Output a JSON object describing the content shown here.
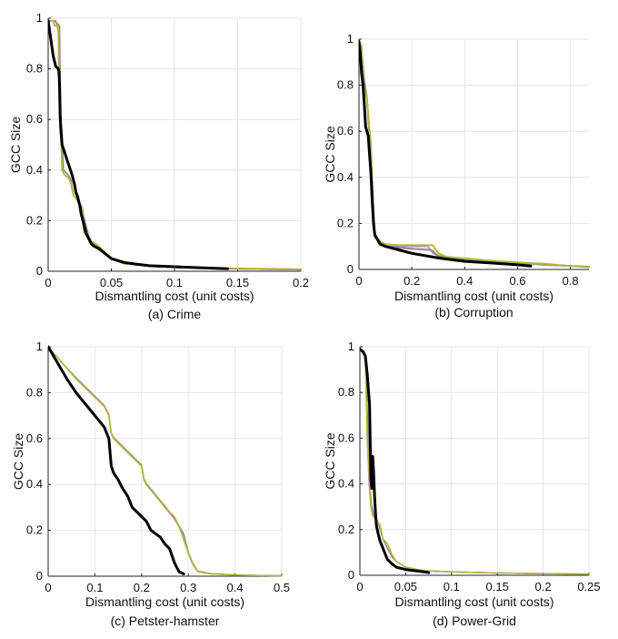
{
  "figure": {
    "ylabel_shared": "GCC Size"
  },
  "chart_data": [
    {
      "type": "line",
      "caption": "(a) Crime",
      "xlabel": "Dismantling cost (unit costs)",
      "ylabel": "GCC Size",
      "xlim": [
        0,
        0.2
      ],
      "ylim": [
        0,
        1
      ],
      "xticks": [
        0,
        0.05,
        0.1,
        0.15,
        0.2
      ],
      "xtick_labels": [
        "0",
        "0.05",
        "0.1",
        "0.15",
        "0.2"
      ],
      "yticks": [
        0,
        0.2,
        0.4,
        0.6,
        0.8,
        1
      ],
      "ytick_labels": [
        "0",
        "0.2",
        "0.4",
        "0.6",
        "0.8",
        "1"
      ],
      "grid": true,
      "series": [
        {
          "name": "magenta",
          "color": "#c97fbf",
          "width": 1.6,
          "x": [
            0,
            0.004,
            0.006,
            0.008,
            0.009,
            0.01,
            0.011,
            0.012,
            0.016,
            0.018,
            0.02,
            0.022,
            0.025,
            0.027,
            0.028,
            0.03,
            0.032,
            0.035,
            0.04,
            0.05,
            0.06,
            0.08,
            0.1,
            0.14,
            0.2
          ],
          "y": [
            0.99,
            0.99,
            0.99,
            0.95,
            0.6,
            0.57,
            0.55,
            0.4,
            0.38,
            0.36,
            0.3,
            0.29,
            0.27,
            0.25,
            0.21,
            0.18,
            0.14,
            0.11,
            0.09,
            0.05,
            0.03,
            0.02,
            0.015,
            0.01,
            0.006
          ]
        },
        {
          "name": "gray",
          "color": "#8a8a8a",
          "width": 1.6,
          "x": [
            0,
            0.005,
            0.007,
            0.009,
            0.01,
            0.011,
            0.012,
            0.016,
            0.018,
            0.02,
            0.022,
            0.025,
            0.027,
            0.028,
            0.03,
            0.032,
            0.035,
            0.04,
            0.05,
            0.06,
            0.08,
            0.1,
            0.14,
            0.2
          ],
          "y": [
            0.99,
            0.99,
            0.98,
            0.97,
            0.6,
            0.55,
            0.4,
            0.38,
            0.36,
            0.3,
            0.29,
            0.26,
            0.25,
            0.22,
            0.18,
            0.14,
            0.11,
            0.09,
            0.05,
            0.03,
            0.02,
            0.015,
            0.01,
            0.006
          ]
        },
        {
          "name": "olive",
          "color": "#b5b53a",
          "width": 1.8,
          "x": [
            0,
            0.004,
            0.005,
            0.008,
            0.009,
            0.01,
            0.011,
            0.012,
            0.013,
            0.016,
            0.018,
            0.02,
            0.022,
            0.024,
            0.025,
            0.026,
            0.027,
            0.028,
            0.029,
            0.03,
            0.032,
            0.034,
            0.037,
            0.04,
            0.05,
            0.06,
            0.08,
            0.1,
            0.14,
            0.19,
            0.2
          ],
          "y": [
            0.99,
            0.99,
            0.97,
            0.97,
            0.8,
            0.55,
            0.4,
            0.39,
            0.38,
            0.37,
            0.35,
            0.3,
            0.29,
            0.27,
            0.26,
            0.25,
            0.25,
            0.16,
            0.15,
            0.15,
            0.13,
            0.12,
            0.11,
            0.1,
            0.05,
            0.03,
            0.022,
            0.018,
            0.012,
            0.009,
            0.008
          ]
        },
        {
          "name": "black",
          "color": "#000000",
          "width": 3,
          "x": [
            0,
            0.002,
            0.004,
            0.006,
            0.008,
            0.0085,
            0.009,
            0.0095,
            0.01,
            0.011,
            0.013,
            0.015,
            0.017,
            0.019,
            0.021,
            0.022,
            0.023,
            0.024,
            0.025,
            0.026,
            0.028,
            0.03,
            0.032,
            0.034,
            0.036,
            0.04,
            0.045,
            0.05,
            0.06,
            0.07,
            0.08,
            0.1,
            0.12,
            0.142
          ],
          "y": [
            0.99,
            0.92,
            0.85,
            0.81,
            0.8,
            0.79,
            0.74,
            0.62,
            0.56,
            0.5,
            0.47,
            0.44,
            0.41,
            0.38,
            0.34,
            0.31,
            0.3,
            0.28,
            0.26,
            0.23,
            0.19,
            0.15,
            0.13,
            0.11,
            0.1,
            0.09,
            0.07,
            0.05,
            0.035,
            0.028,
            0.022,
            0.018,
            0.014,
            0.01
          ]
        }
      ]
    },
    {
      "type": "line",
      "caption": "(b) Corruption",
      "xlabel": "Dismantling cost (unit costs)",
      "ylabel": "GCC Size",
      "xlim": [
        0,
        0.87
      ],
      "ylim": [
        0,
        1
      ],
      "xticks": [
        0,
        0.2,
        0.4,
        0.6,
        0.8
      ],
      "xtick_labels": [
        "0",
        "0.2",
        "0.4",
        "0.6",
        "0.8"
      ],
      "yticks": [
        0,
        0.2,
        0.4,
        0.6,
        0.8,
        1
      ],
      "ytick_labels": [
        "0",
        "0.2",
        "0.4",
        "0.6",
        "0.8",
        "1"
      ],
      "grid": true,
      "series": [
        {
          "name": "magenta",
          "color": "#c97fbf",
          "width": 1.6,
          "x": [
            0,
            0.01,
            0.02,
            0.03,
            0.04,
            0.05,
            0.06,
            0.08,
            0.1,
            0.15,
            0.2,
            0.26,
            0.28,
            0.3,
            0.4,
            0.5,
            0.6,
            0.7,
            0.87
          ],
          "y": [
            0.99,
            0.95,
            0.82,
            0.75,
            0.6,
            0.4,
            0.15,
            0.12,
            0.11,
            0.1,
            0.1,
            0.1,
            0.07,
            0.06,
            0.045,
            0.035,
            0.03,
            0.02,
            0.012
          ]
        },
        {
          "name": "gray",
          "color": "#8a8a8a",
          "width": 2,
          "x": [
            0,
            0.01,
            0.02,
            0.03,
            0.04,
            0.05,
            0.06,
            0.08,
            0.1,
            0.15,
            0.2,
            0.27,
            0.28,
            0.3,
            0.4,
            0.5,
            0.6,
            0.7,
            0.87
          ],
          "y": [
            0.99,
            0.94,
            0.82,
            0.74,
            0.58,
            0.38,
            0.14,
            0.12,
            0.1,
            0.095,
            0.09,
            0.085,
            0.08,
            0.055,
            0.045,
            0.035,
            0.03,
            0.02,
            0.012
          ]
        },
        {
          "name": "olive",
          "color": "#b5b53a",
          "width": 2,
          "x": [
            0,
            0.01,
            0.015,
            0.02,
            0.03,
            0.04,
            0.045,
            0.05,
            0.06,
            0.08,
            0.1,
            0.15,
            0.2,
            0.25,
            0.28,
            0.3,
            0.33,
            0.4,
            0.5,
            0.6,
            0.7,
            0.8,
            0.87
          ],
          "y": [
            0.99,
            0.97,
            0.8,
            0.78,
            0.74,
            0.6,
            0.55,
            0.35,
            0.15,
            0.12,
            0.11,
            0.105,
            0.105,
            0.105,
            0.105,
            0.07,
            0.055,
            0.048,
            0.038,
            0.03,
            0.025,
            0.015,
            0.01
          ]
        },
        {
          "name": "black",
          "color": "#000000",
          "width": 3,
          "x": [
            0,
            0.005,
            0.01,
            0.015,
            0.02,
            0.025,
            0.03,
            0.035,
            0.04,
            0.045,
            0.05,
            0.055,
            0.06,
            0.07,
            0.08,
            0.1,
            0.15,
            0.2,
            0.25,
            0.3,
            0.4,
            0.5,
            0.6,
            0.65
          ],
          "y": [
            0.99,
            0.93,
            0.85,
            0.8,
            0.72,
            0.62,
            0.6,
            0.58,
            0.5,
            0.42,
            0.3,
            0.2,
            0.15,
            0.13,
            0.11,
            0.1,
            0.085,
            0.07,
            0.06,
            0.05,
            0.035,
            0.028,
            0.02,
            0.015
          ]
        }
      ]
    },
    {
      "type": "line",
      "caption": "(c) Petster-hamster",
      "xlabel": "Dismantling cost (unit costs)",
      "ylabel": "GCC Size",
      "xlim": [
        0,
        0.5
      ],
      "ylim": [
        0,
        1
      ],
      "xticks": [
        0,
        0.1,
        0.2,
        0.3,
        0.4,
        0.5
      ],
      "xtick_labels": [
        "0",
        "0.1",
        "0.2",
        "0.3",
        "0.4",
        "0.5"
      ],
      "yticks": [
        0,
        0.2,
        0.4,
        0.6,
        0.8,
        1
      ],
      "ytick_labels": [
        "0",
        "0.2",
        "0.4",
        "0.6",
        "0.8",
        "1"
      ],
      "grid": true,
      "series": [
        {
          "name": "magenta",
          "color": "#c97fbf",
          "width": 1.4,
          "x": [
            0,
            0.03,
            0.06,
            0.1,
            0.12,
            0.13,
            0.135,
            0.14,
            0.16,
            0.18,
            0.2,
            0.205,
            0.21,
            0.23,
            0.25,
            0.27,
            0.29,
            0.3,
            0.31,
            0.32,
            0.35,
            0.4,
            0.45,
            0.5
          ],
          "y": [
            1,
            0.93,
            0.86,
            0.78,
            0.74,
            0.7,
            0.62,
            0.6,
            0.56,
            0.52,
            0.48,
            0.42,
            0.4,
            0.35,
            0.3,
            0.25,
            0.18,
            0.1,
            0.05,
            0.02,
            0.01,
            0.005,
            0.003,
            0.002
          ]
        },
        {
          "name": "gray",
          "color": "#8a8a8a",
          "width": 1.4,
          "x": [
            0,
            0.03,
            0.06,
            0.1,
            0.12,
            0.13,
            0.135,
            0.14,
            0.16,
            0.18,
            0.2,
            0.205,
            0.21,
            0.23,
            0.25,
            0.27,
            0.29,
            0.3,
            0.31,
            0.32,
            0.35,
            0.4,
            0.45,
            0.5
          ],
          "y": [
            1,
            0.93,
            0.865,
            0.785,
            0.745,
            0.705,
            0.625,
            0.605,
            0.565,
            0.525,
            0.485,
            0.425,
            0.405,
            0.355,
            0.305,
            0.255,
            0.185,
            0.105,
            0.055,
            0.022,
            0.011,
            0.006,
            0.003,
            0.002
          ]
        },
        {
          "name": "olive",
          "color": "#b5b53a",
          "width": 1.6,
          "x": [
            0,
            0.03,
            0.06,
            0.1,
            0.12,
            0.13,
            0.135,
            0.14,
            0.16,
            0.18,
            0.2,
            0.205,
            0.21,
            0.23,
            0.25,
            0.27,
            0.28,
            0.29,
            0.3,
            0.31,
            0.32,
            0.35,
            0.4,
            0.45,
            0.5
          ],
          "y": [
            1,
            0.93,
            0.86,
            0.78,
            0.74,
            0.7,
            0.62,
            0.6,
            0.56,
            0.52,
            0.48,
            0.42,
            0.4,
            0.35,
            0.3,
            0.26,
            0.22,
            0.16,
            0.1,
            0.05,
            0.02,
            0.01,
            0.005,
            0.003,
            0.002
          ]
        },
        {
          "name": "black",
          "color": "#000000",
          "width": 3,
          "x": [
            0,
            0.02,
            0.04,
            0.06,
            0.08,
            0.1,
            0.12,
            0.13,
            0.135,
            0.14,
            0.15,
            0.16,
            0.17,
            0.18,
            0.2,
            0.21,
            0.22,
            0.24,
            0.25,
            0.26,
            0.27,
            0.28,
            0.29
          ],
          "y": [
            1,
            0.93,
            0.86,
            0.8,
            0.75,
            0.7,
            0.65,
            0.6,
            0.48,
            0.45,
            0.42,
            0.38,
            0.35,
            0.3,
            0.26,
            0.24,
            0.2,
            0.17,
            0.14,
            0.12,
            0.06,
            0.02,
            0.01
          ]
        }
      ]
    },
    {
      "type": "line",
      "caption": "(d) Power-Grid",
      "xlabel": "Dismantling cost (unit costs)",
      "ylabel": "GCC Size",
      "xlim": [
        0,
        0.25
      ],
      "ylim": [
        0,
        1
      ],
      "xticks": [
        0,
        0.05,
        0.1,
        0.15,
        0.2,
        0.25
      ],
      "xtick_labels": [
        "0",
        "0.05",
        "0.1",
        "0.15",
        "0.2",
        "0.25"
      ],
      "yticks": [
        0,
        0.2,
        0.4,
        0.6,
        0.8,
        1
      ],
      "ytick_labels": [
        "0",
        "0.2",
        "0.4",
        "0.6",
        "0.8",
        "1"
      ],
      "grid": true,
      "series": [
        {
          "name": "magenta",
          "color": "#c97fbf",
          "width": 1.4,
          "x": [
            0,
            0.005,
            0.007,
            0.008,
            0.01,
            0.012,
            0.015,
            0.02,
            0.025,
            0.03,
            0.035,
            0.04,
            0.05,
            0.07,
            0.1,
            0.15,
            0.2,
            0.25
          ],
          "y": [
            0.98,
            0.98,
            0.9,
            0.6,
            0.4,
            0.3,
            0.26,
            0.23,
            0.16,
            0.12,
            0.08,
            0.06,
            0.035,
            0.02,
            0.015,
            0.01,
            0.007,
            0.005
          ]
        },
        {
          "name": "gray",
          "color": "#8a8a8a",
          "width": 1.4,
          "x": [
            0,
            0.005,
            0.007,
            0.009,
            0.011,
            0.013,
            0.015,
            0.02,
            0.025,
            0.03,
            0.035,
            0.04,
            0.05,
            0.07,
            0.1,
            0.15,
            0.2,
            0.25
          ],
          "y": [
            0.98,
            0.98,
            0.88,
            0.58,
            0.38,
            0.3,
            0.27,
            0.23,
            0.16,
            0.12,
            0.08,
            0.06,
            0.035,
            0.02,
            0.015,
            0.01,
            0.007,
            0.005
          ]
        },
        {
          "name": "olive",
          "color": "#b5b53a",
          "width": 1.6,
          "x": [
            0,
            0.004,
            0.006,
            0.008,
            0.01,
            0.012,
            0.014,
            0.018,
            0.022,
            0.025,
            0.03,
            0.035,
            0.04,
            0.05,
            0.07,
            0.1,
            0.15,
            0.2,
            0.25
          ],
          "y": [
            0.98,
            0.98,
            0.95,
            0.6,
            0.45,
            0.3,
            0.26,
            0.24,
            0.22,
            0.16,
            0.14,
            0.09,
            0.06,
            0.035,
            0.02,
            0.015,
            0.01,
            0.007,
            0.005
          ]
        },
        {
          "name": "black",
          "color": "#000000",
          "width": 3,
          "x": [
            0,
            0.003,
            0.006,
            0.008,
            0.0095,
            0.0105,
            0.012,
            0.013,
            0.014,
            0.015,
            0.016,
            0.017,
            0.018,
            0.02,
            0.022,
            0.025,
            0.028,
            0.03,
            0.035,
            0.04,
            0.05,
            0.06,
            0.07,
            0.075
          ],
          "y": [
            0.99,
            0.98,
            0.96,
            0.88,
            0.8,
            0.75,
            0.42,
            0.38,
            0.52,
            0.45,
            0.35,
            0.28,
            0.22,
            0.18,
            0.15,
            0.12,
            0.09,
            0.07,
            0.05,
            0.035,
            0.025,
            0.02,
            0.015,
            0.012
          ]
        }
      ]
    }
  ]
}
